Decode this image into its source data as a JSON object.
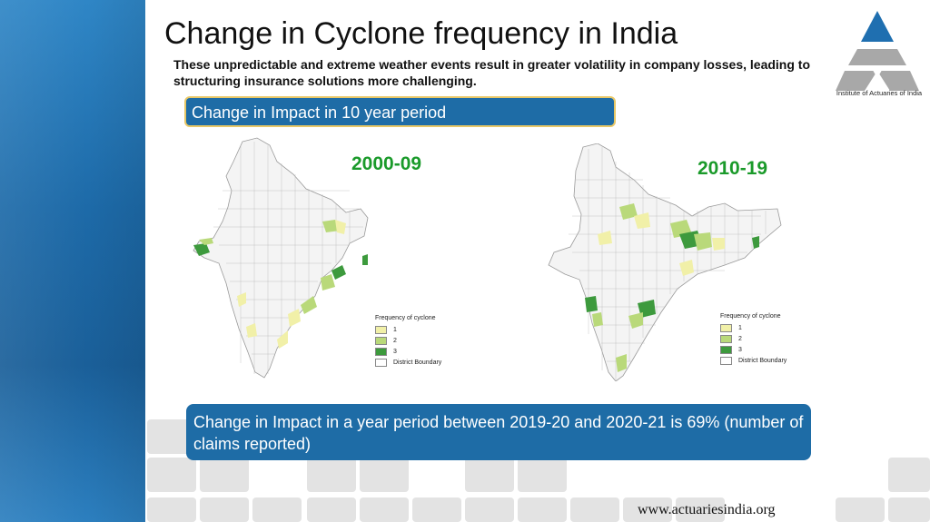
{
  "slide": {
    "title": "Change in Cyclone frequency in India",
    "subtitle": "These unpredictable and extreme weather events result in greater volatility in company losses, leading to structuring insurance solutions more challenging.",
    "logo_text": "Institute of Actuaries of India",
    "box_top": "Change in Impact in 10 year period",
    "box_bottom": "Change in Impact in a year period between 2019-20 and 2020-21 is 69% (number of claims reported)",
    "footer_url": "www.actuariesindia.org"
  },
  "maps": [
    {
      "period": "2000-09",
      "legend_title": "Frequency of cyclone",
      "legend": [
        {
          "label": "1",
          "color": "#f1f0a8"
        },
        {
          "label": "2",
          "color": "#b9d97a"
        },
        {
          "label": "3",
          "color": "#3d9a3d"
        },
        {
          "label": "District Boundary",
          "color": "#ffffff"
        }
      ]
    },
    {
      "period": "2010-19",
      "legend_title": "Frequency of cyclone",
      "legend": [
        {
          "label": "1",
          "color": "#f1f0a8"
        },
        {
          "label": "2",
          "color": "#b9d97a"
        },
        {
          "label": "3",
          "color": "#3d9a3d"
        },
        {
          "label": "District Boundary",
          "color": "#ffffff"
        }
      ]
    }
  ],
  "colors": {
    "brand_blue": "#1e6ca6",
    "logo_blue": "#1f6fb0",
    "logo_grey": "#a8a8a8",
    "map_fill": "#f4f4f4",
    "period_green": "#1a9a2a"
  }
}
